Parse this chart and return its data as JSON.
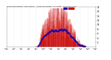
{
  "n_minutes": 1440,
  "background_color": "#ffffff",
  "bar_color": "#cc0000",
  "median_color": "#0000bb",
  "ylim": [
    0,
    18
  ],
  "xlim": [
    0,
    1440
  ],
  "seed": 7,
  "title_text": "Milwaukee Weather  Wind Speed    Actual and Median   by Minute",
  "subtitle_text": "(24 Hours) (Old)",
  "yticks": [
    2,
    4,
    6,
    8,
    10,
    12,
    14,
    16,
    18
  ],
  "legend_median_color": "#0000cc",
  "legend_actual_color": "#cc0000"
}
